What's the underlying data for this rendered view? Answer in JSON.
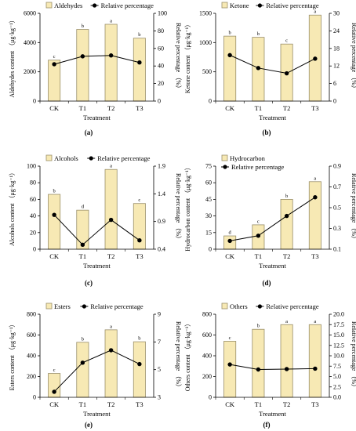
{
  "chart_data": [
    {
      "type": "bar",
      "panel_label": "(a)",
      "categories": [
        "CK",
        "T1",
        "T2",
        "T3"
      ],
      "xlabel": "Treatment",
      "ylabel": "Aldehydes content （μg·kg⁻¹）",
      "y2label": "Relative percentage （%）",
      "ylim": [
        0,
        6000
      ],
      "yticks": [
        0,
        2000,
        4000,
        6000
      ],
      "y2lim": [
        0,
        100
      ],
      "y2ticks": [
        0,
        20,
        40,
        60,
        80,
        100
      ],
      "series": [
        {
          "name": "Aldehydes",
          "kind": "bar",
          "axis": "left",
          "values": [
            2800,
            4900,
            5250,
            4300
          ],
          "labels": [
            "c",
            "b",
            "a",
            "b"
          ]
        },
        {
          "name": "Relative percentage",
          "kind": "line",
          "axis": "right",
          "values": [
            42,
            51,
            52,
            44
          ]
        }
      ],
      "legend": "top",
      "grid": false
    },
    {
      "type": "bar",
      "panel_label": "(b)",
      "categories": [
        "CK",
        "T1",
        "T2",
        "T3"
      ],
      "xlabel": "Treatment",
      "ylabel": "Ketone content （μg·kg⁻¹）",
      "y2label": "Relative percentage （%）",
      "ylim": [
        0,
        1500
      ],
      "yticks": [
        0,
        500,
        1000,
        1500
      ],
      "y2lim": [
        0,
        30
      ],
      "y2ticks": [
        0,
        6,
        12,
        18,
        24,
        30
      ],
      "series": [
        {
          "name": "Ketone",
          "kind": "bar",
          "axis": "left",
          "values": [
            1110,
            1090,
            975,
            1470
          ],
          "labels": [
            "b",
            "b",
            "c",
            "a"
          ]
        },
        {
          "name": "Relative percentage",
          "kind": "line",
          "axis": "right",
          "values": [
            15.7,
            11.3,
            9.5,
            14.5
          ]
        }
      ],
      "legend": "top",
      "grid": false
    },
    {
      "type": "bar",
      "panel_label": "(c)",
      "categories": [
        "CK",
        "T1",
        "T2",
        "T3"
      ],
      "xlabel": "Treatment",
      "ylabel": "Alcohols content （μg·kg⁻¹）",
      "y2label": "Relative percentage （%）",
      "ylim": [
        0,
        100
      ],
      "yticks": [
        0,
        20,
        40,
        60,
        80,
        100
      ],
      "y2lim": [
        0.4,
        1.9
      ],
      "y2ticks": [
        0.4,
        0.9,
        1.4,
        1.9
      ],
      "series": [
        {
          "name": "Alcohols",
          "kind": "bar",
          "axis": "left",
          "values": [
            66,
            47,
            96,
            55
          ],
          "labels": [
            "b",
            "d",
            "a",
            "c"
          ]
        },
        {
          "name": "Relative percentage",
          "kind": "line",
          "axis": "right",
          "values": [
            1.02,
            0.48,
            0.93,
            0.56
          ]
        }
      ],
      "legend": "top",
      "grid": false
    },
    {
      "type": "bar",
      "panel_label": "(d)",
      "categories": [
        "CK",
        "T1",
        "T2",
        "T3"
      ],
      "xlabel": "Treatment",
      "ylabel": "Hydrocarbon content （μg·kg⁻¹）",
      "y2label": "Relative percentage （%）",
      "ylim": [
        0,
        75
      ],
      "yticks": [
        0,
        15,
        30,
        45,
        60,
        75
      ],
      "y2lim": [
        0.1,
        0.9
      ],
      "y2ticks": [
        0.1,
        0.3,
        0.5,
        0.7,
        0.9
      ],
      "series": [
        {
          "name": "Hydrocarbon",
          "kind": "bar",
          "axis": "left",
          "values": [
            12,
            22,
            45,
            61
          ],
          "labels": [
            "d",
            "c",
            "b",
            "a"
          ]
        },
        {
          "name": "Relative percentage",
          "kind": "line",
          "axis": "right",
          "values": [
            0.18,
            0.23,
            0.42,
            0.6
          ]
        }
      ],
      "legend": "top",
      "grid": false
    },
    {
      "type": "bar",
      "panel_label": "(e)",
      "categories": [
        "CK",
        "T1",
        "T2",
        "T3"
      ],
      "xlabel": "Treatment",
      "ylabel": "Esters content （μg·kg⁻¹）",
      "y2label": "Relative percentage （%）",
      "ylim": [
        0,
        800
      ],
      "yticks": [
        0,
        200,
        400,
        600,
        800
      ],
      "y2lim": [
        3.0,
        9.0
      ],
      "y2ticks": [
        3.0,
        5.0,
        7.0,
        9.0
      ],
      "series": [
        {
          "name": "Esters",
          "kind": "bar",
          "axis": "left",
          "values": [
            230,
            530,
            650,
            535
          ],
          "labels": [
            "c",
            "b",
            "a",
            "b"
          ]
        },
        {
          "name": "Relative percentage",
          "kind": "line",
          "axis": "right",
          "values": [
            3.4,
            5.5,
            6.4,
            5.4
          ]
        }
      ],
      "legend": "top",
      "grid": false
    },
    {
      "type": "bar",
      "panel_label": "(f)",
      "categories": [
        "CK",
        "T1",
        "T2",
        "T3"
      ],
      "xlabel": "Treatment",
      "ylabel": "Others content （μg·kg⁻¹）",
      "y2label": "Relative percentage （%）",
      "ylim": [
        0,
        800
      ],
      "yticks": [
        0,
        200,
        400,
        600,
        800
      ],
      "y2lim": [
        0.0,
        20.0
      ],
      "y2ticks": [
        0.0,
        2.5,
        5.0,
        7.5,
        10.0,
        12.5,
        15.0,
        17.5,
        20.0
      ],
      "series": [
        {
          "name": "Others",
          "kind": "bar",
          "axis": "left",
          "values": [
            540,
            655,
            700,
            700
          ],
          "labels": [
            "c",
            "b",
            "a",
            "a"
          ]
        },
        {
          "name": "Relative percentage",
          "kind": "line",
          "axis": "right",
          "values": [
            7.9,
            6.7,
            6.8,
            6.9
          ]
        }
      ],
      "legend": "top",
      "grid": false
    }
  ]
}
